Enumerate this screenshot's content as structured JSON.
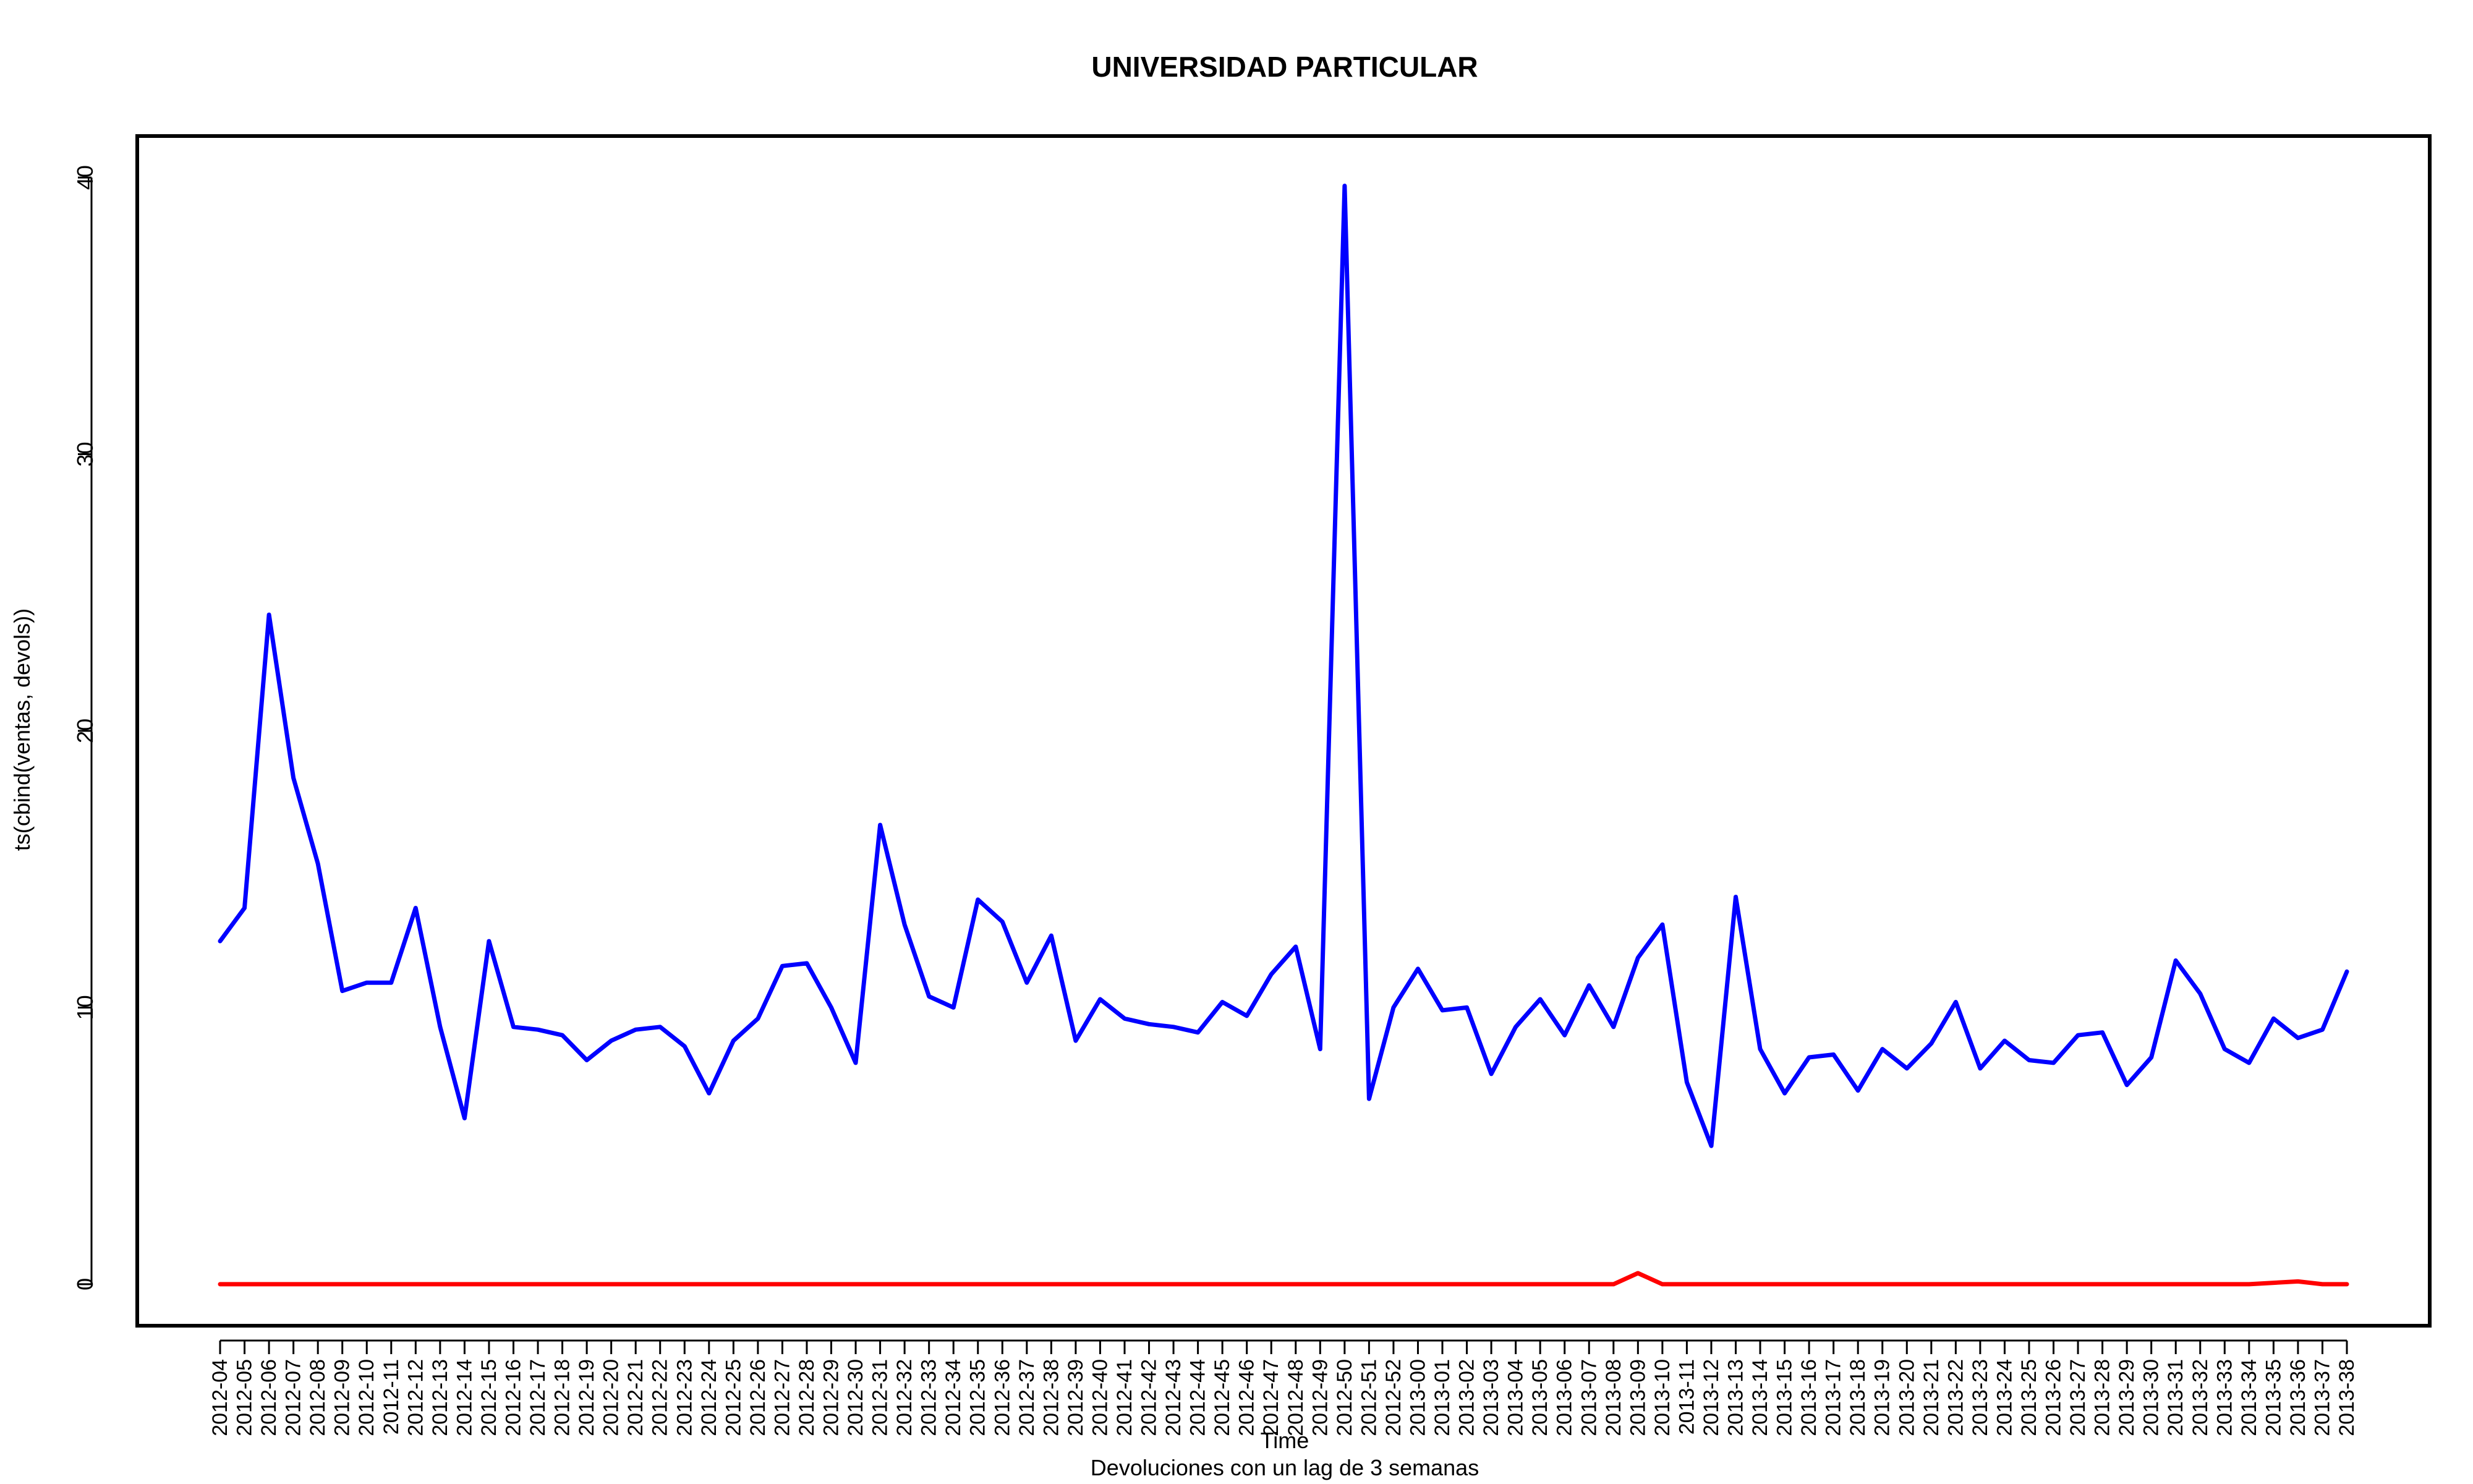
{
  "chart_data": {
    "type": "line",
    "title": "UNIVERSIDAD PARTICULAR",
    "xlabel": "Time",
    "subtitle": "Devoluciones con un lag de 3 semanas",
    "ylabel": "ts(cbind(ventas, devols))",
    "ylim": [
      -1.5,
      41.5
    ],
    "yticks": [
      0,
      10,
      20,
      30,
      40
    ],
    "categories": [
      "2012-04",
      "2012-05",
      "2012-06",
      "2012-07",
      "2012-08",
      "2012-09",
      "2012-10",
      "2012-11",
      "2012-12",
      "2012-13",
      "2012-14",
      "2012-15",
      "2012-16",
      "2012-17",
      "2012-18",
      "2012-19",
      "2012-20",
      "2012-21",
      "2012-22",
      "2012-23",
      "2012-24",
      "2012-25",
      "2012-26",
      "2012-27",
      "2012-28",
      "2012-29",
      "2012-30",
      "2012-31",
      "2012-32",
      "2012-33",
      "2012-34",
      "2012-35",
      "2012-36",
      "2012-37",
      "2012-38",
      "2012-39",
      "2012-40",
      "2012-41",
      "2012-42",
      "2012-43",
      "2012-44",
      "2012-45",
      "2012-46",
      "2012-47",
      "2012-48",
      "2012-49",
      "2012-50",
      "2012-51",
      "2012-52",
      "2013-00",
      "2013-01",
      "2013-02",
      "2013-03",
      "2013-04",
      "2013-05",
      "2013-06",
      "2013-07",
      "2013-08",
      "2013-09",
      "2013-10",
      "2013-11",
      "2013-12",
      "2013-13",
      "2013-14",
      "2013-15",
      "2013-16",
      "2013-17",
      "2013-18",
      "2013-19",
      "2013-20",
      "2013-21",
      "2013-22",
      "2013-23",
      "2013-24",
      "2013-25",
      "2013-26",
      "2013-27",
      "2013-28",
      "2013-29",
      "2013-30",
      "2013-31",
      "2013-32",
      "2013-33",
      "2013-34",
      "2013-35",
      "2013-36",
      "2013-37",
      "2013-38"
    ],
    "series": [
      {
        "color": "#0000ff",
        "values": [
          12.4,
          13.6,
          24.2,
          18.3,
          15.2,
          10.6,
          10.9,
          10.9,
          13.6,
          9.3,
          6.0,
          12.4,
          9.3,
          9.2,
          9.0,
          8.1,
          8.8,
          9.2,
          9.3,
          8.6,
          6.9,
          8.8,
          9.6,
          11.5,
          11.6,
          10.0,
          8.0,
          16.6,
          13.0,
          10.4,
          10.0,
          13.9,
          13.1,
          10.9,
          12.6,
          8.8,
          10.3,
          9.6,
          9.4,
          9.3,
          9.1,
          10.2,
          9.7,
          11.2,
          12.2,
          8.5,
          39.7,
          6.7,
          10.0,
          11.4,
          9.9,
          10.0,
          7.6,
          9.3,
          10.3,
          9.0,
          10.8,
          9.3,
          11.8,
          13.0,
          7.3,
          5.0,
          14.0,
          8.5,
          6.9,
          8.2,
          8.3,
          7.0,
          8.5,
          7.8,
          8.7,
          10.2,
          7.8,
          8.8,
          8.1,
          8.0,
          9.0,
          9.1,
          7.2,
          8.2,
          11.7,
          10.5,
          8.5,
          8.0,
          9.6,
          8.9,
          9.2,
          11.3
        ]
      },
      {
        "color": "#ff0000",
        "values": [
          0,
          0,
          0,
          0,
          0,
          0,
          0,
          0,
          0,
          0,
          0,
          0,
          0,
          0,
          0,
          0,
          0,
          0,
          0,
          0,
          0,
          0,
          0,
          0,
          0,
          0,
          0,
          0,
          0,
          0,
          0,
          0,
          0,
          0,
          0,
          0,
          0,
          0,
          0,
          0,
          0,
          0,
          0,
          0,
          0,
          0,
          0,
          0,
          0,
          0,
          0,
          0,
          0,
          0,
          0,
          0,
          0,
          0,
          0.4,
          0,
          0,
          0,
          0,
          0,
          0,
          0,
          0,
          0,
          0,
          0,
          0,
          0,
          0,
          0,
          0,
          0,
          0,
          0,
          0,
          0,
          0,
          0,
          0,
          0,
          0.05,
          0.1,
          0,
          0
        ]
      }
    ],
    "grid": false,
    "legend": "none"
  }
}
